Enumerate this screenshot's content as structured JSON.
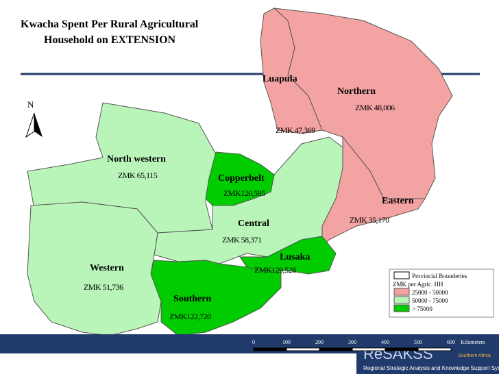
{
  "title": [
    "Kwacha Spent Per Rural Agricultural",
    "Household on EXTENSION"
  ],
  "north_label": "N",
  "provinces": [
    {
      "name": "Luapula",
      "value_text": "ZMK 47,369",
      "color": "#f4a3a3"
    },
    {
      "name": "Northern",
      "value_text": "ZMK 48,006",
      "color": "#f4a3a3"
    },
    {
      "name": "Eastern",
      "value_text": "ZMK 35,170",
      "color": "#f4a3a3"
    },
    {
      "name": "North western",
      "value_text": "ZMK 65,115",
      "color": "#b9f5b9"
    },
    {
      "name": "Copperbelt",
      "value_text": "ZMK120,595",
      "color": "#00cc00"
    },
    {
      "name": "Central",
      "value_text": "ZMK 58,371",
      "color": "#b9f5b9"
    },
    {
      "name": "Lusaka",
      "value_text": "ZMK129,528",
      "color": "#00cc00"
    },
    {
      "name": "Western",
      "value_text": "ZMK 51,736",
      "color": "#b9f5b9"
    },
    {
      "name": "Southern",
      "value_text": "ZMK122,720",
      "color": "#00cc00"
    }
  ],
  "legend": {
    "boundary": "Provincial Bounderies",
    "heading": "ZMK per Agric. HH",
    "items": [
      {
        "label": "25000 - 50000",
        "color": "#f4a3a3"
      },
      {
        "label": "50000 - 75000",
        "color": "#b9f5b9"
      },
      {
        "label": "> 75000",
        "color": "#00cc00"
      }
    ]
  },
  "scale_labels": [
    "0",
    "100",
    "200",
    "300",
    "400",
    "500",
    "600",
    "Kilometers"
  ],
  "footer": {
    "logo": "ReSAKSS",
    "region": "Southern Africa",
    "subtitle": "Regional Strategic Analysis and Knowledge Support System"
  }
}
